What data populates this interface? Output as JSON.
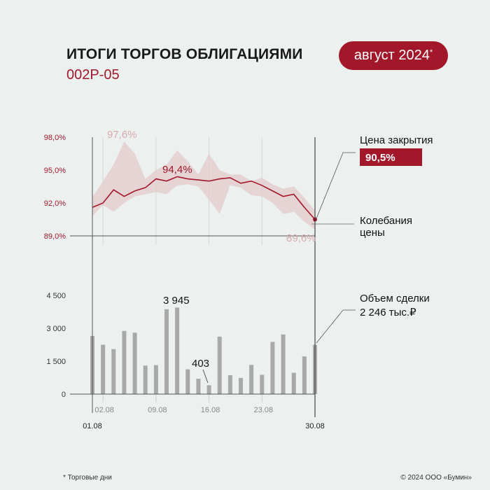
{
  "header": {
    "title": "ИТОГИ ТОРГОВ ОБЛИГАЦИЯМИ",
    "subtitle": "002Р-05",
    "badge_text": "август 2024",
    "badge_mark": "*"
  },
  "footer": {
    "footnote": "* Торговые дни",
    "copyright": "© 2024 ООО «Бумин»"
  },
  "colors": {
    "accent": "#a3172a",
    "band": "#e4c9cb",
    "bars": "#a9a9a9",
    "axis": "#555555",
    "background": "#ecf1f0"
  },
  "chart_data": [
    {
      "type": "line",
      "series_key": "price",
      "x": [
        "01.08",
        "02.08",
        "05.08",
        "06.08",
        "07.08",
        "08.08",
        "09.08",
        "12.08",
        "13.08",
        "14.08",
        "15.08",
        "16.08",
        "19.08",
        "20.08",
        "21.08",
        "22.08",
        "23.08",
        "26.08",
        "27.08",
        "28.08",
        "29.08",
        "30.08"
      ],
      "values": [
        91.6,
        92.0,
        93.2,
        92.6,
        93.1,
        93.4,
        94.2,
        94.0,
        94.4,
        94.2,
        94.1,
        94.0,
        94.2,
        94.3,
        93.8,
        94.0,
        93.6,
        93.1,
        92.6,
        92.8,
        91.6,
        90.5
      ],
      "band_high": [
        92.5,
        94.0,
        95.5,
        97.6,
        96.5,
        94.2,
        95.0,
        95.5,
        96.8,
        95.8,
        94.6,
        96.5,
        95.0,
        94.6,
        94.6,
        94.0,
        94.3,
        93.7,
        93.3,
        93.5,
        92.5,
        91.3
      ],
      "band_low": [
        90.8,
        91.8,
        91.2,
        92.0,
        92.6,
        92.8,
        93.0,
        92.8,
        93.6,
        93.7,
        93.5,
        92.3,
        91.0,
        93.6,
        93.4,
        92.7,
        92.6,
        92.0,
        91.0,
        91.2,
        90.3,
        89.6
      ],
      "yticks": [
        "98,0%",
        "95,0%",
        "92,0%",
        "89,0%"
      ],
      "ylim": [
        89.0,
        98.0
      ],
      "annotations": [
        "97,6%",
        "94,4%",
        "89,6%"
      ],
      "legend": {
        "close_label": "Цена закрытия",
        "close_value": "90,5%",
        "band_label_line1": "Колебания",
        "band_label_line2": "цены"
      }
    },
    {
      "type": "bar",
      "series_key": "volume",
      "x": [
        "01.08",
        "02.08",
        "05.08",
        "06.08",
        "07.08",
        "08.08",
        "09.08",
        "12.08",
        "13.08",
        "14.08",
        "15.08",
        "16.08",
        "19.08",
        "20.08",
        "21.08",
        "22.08",
        "23.08",
        "26.08",
        "27.08",
        "28.08",
        "29.08",
        "30.08"
      ],
      "values": [
        2650,
        2250,
        2050,
        2880,
        2800,
        1300,
        1320,
        3870,
        3945,
        1130,
        700,
        403,
        2620,
        860,
        740,
        1330,
        880,
        2380,
        2720,
        970,
        1720,
        2246
      ],
      "yticks": [
        "4 500",
        "3 000",
        "1 500",
        "0"
      ],
      "ylim": [
        0,
        4500
      ],
      "annotations": [
        "3 945",
        "403"
      ],
      "legend": {
        "label": "Объем сделки",
        "value": "2 246 тыс.₽"
      },
      "xticks_mid": [
        "02.08",
        "09.08",
        "16.08",
        "23.08"
      ],
      "xticks_ends": [
        "01.08",
        "30.08"
      ]
    }
  ]
}
